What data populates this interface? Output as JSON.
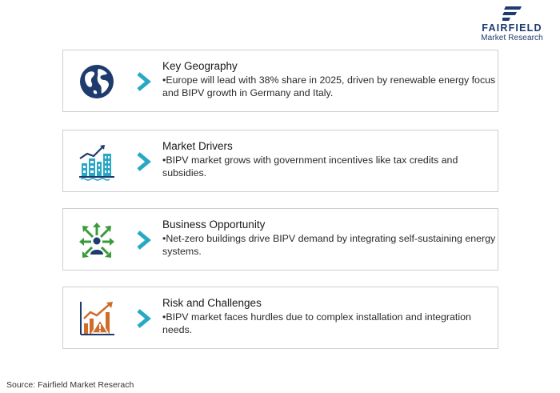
{
  "brand": {
    "name": "FAIRFIELD",
    "subtitle": "Market Research",
    "icon": "fairfield-logo-icon",
    "color": "#1e3b6e"
  },
  "accent_color": "#29a8c5",
  "cards": [
    {
      "title": "Key Geography",
      "body": "•Europe will lead with 38% share in 2025, driven by renewable energy focus and BIPV growth in Germany and Italy.",
      "icon": "globe-icon",
      "icon_color": "#1e3b6e"
    },
    {
      "title": "Market Drivers",
      "body": "•BIPV market grows with government incentives like tax credits and subsidies.",
      "icon": "city-growth-icon",
      "icon_color": "#29a8c5"
    },
    {
      "title": "Business Opportunity",
      "body": "•Net-zero buildings drive BIPV demand by integrating self-sustaining energy systems.",
      "icon": "opportunity-arrows-icon",
      "icon_color": "#3a9b3a"
    },
    {
      "title": "Risk and Challenges",
      "body": "•BIPV market faces hurdles due to complex installation and integration needs.",
      "icon": "risk-warning-icon",
      "icon_color": "#d06b2a"
    }
  ],
  "source": "Source: Fairfield Market Reserach"
}
